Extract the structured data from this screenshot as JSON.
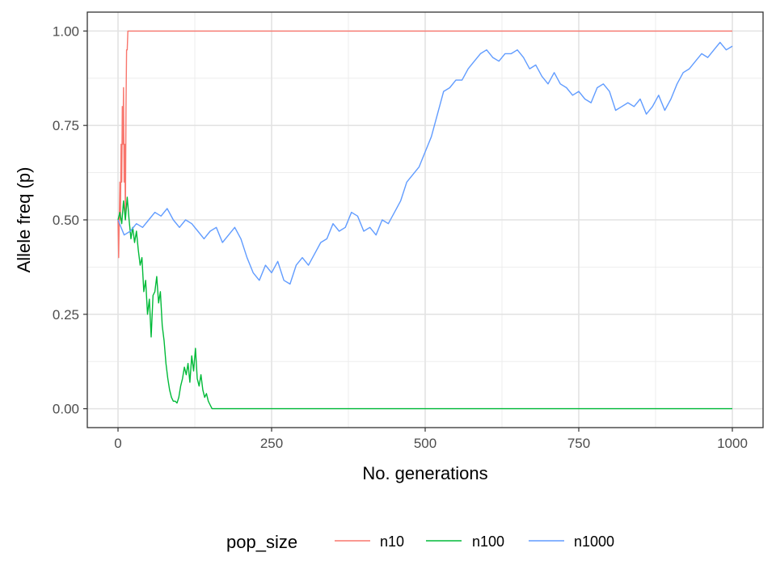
{
  "chart_data": {
    "type": "line",
    "title": "",
    "xlabel": "No. generations",
    "ylabel": "Allele freq (p)",
    "xlim": [
      -50,
      1050
    ],
    "ylim": [
      -0.05,
      1.05
    ],
    "x_ticks": [
      0,
      250,
      500,
      750,
      1000
    ],
    "x_tick_labels": [
      "0",
      "250",
      "500",
      "750",
      "1000"
    ],
    "y_ticks": [
      0,
      0.25,
      0.5,
      0.75,
      1.0
    ],
    "y_tick_labels": [
      "0.00",
      "0.25",
      "0.50",
      "0.75",
      "1.00"
    ],
    "grid": true,
    "legend": {
      "title": "pop_size",
      "position": "bottom"
    },
    "series": [
      {
        "name": "n10",
        "color": "#F8766D",
        "x": [
          0,
          1,
          2,
          3,
          4,
          5,
          6,
          7,
          8,
          9,
          10,
          11,
          12,
          13,
          14,
          15,
          16,
          17,
          1000
        ],
        "y": [
          0.5,
          0.4,
          0.5,
          0.6,
          0.5,
          0.7,
          0.6,
          0.8,
          0.7,
          0.85,
          0.6,
          0.7,
          0.5,
          0.8,
          0.95,
          0.95,
          1.0,
          1.0,
          1.0
        ]
      },
      {
        "name": "n100",
        "color": "#00BA38",
        "x": [
          0,
          3,
          6,
          9,
          12,
          15,
          18,
          21,
          24,
          27,
          30,
          33,
          36,
          39,
          42,
          45,
          48,
          51,
          54,
          57,
          60,
          63,
          66,
          69,
          72,
          75,
          78,
          81,
          84,
          87,
          90,
          93,
          96,
          99,
          102,
          105,
          108,
          111,
          114,
          117,
          120,
          123,
          126,
          129,
          132,
          135,
          138,
          141,
          144,
          147,
          150,
          153,
          155,
          1000
        ],
        "y": [
          0.5,
          0.52,
          0.49,
          0.55,
          0.5,
          0.56,
          0.5,
          0.45,
          0.48,
          0.44,
          0.47,
          0.42,
          0.38,
          0.4,
          0.31,
          0.34,
          0.25,
          0.29,
          0.19,
          0.3,
          0.31,
          0.35,
          0.28,
          0.31,
          0.22,
          0.18,
          0.12,
          0.08,
          0.05,
          0.03,
          0.02,
          0.02,
          0.015,
          0.03,
          0.06,
          0.08,
          0.11,
          0.09,
          0.12,
          0.07,
          0.14,
          0.1,
          0.16,
          0.08,
          0.06,
          0.09,
          0.05,
          0.03,
          0.04,
          0.02,
          0.01,
          0.0,
          0.0,
          0.0
        ]
      },
      {
        "name": "n1000",
        "color": "#619CFF",
        "x": [
          0,
          10,
          20,
          30,
          40,
          50,
          60,
          70,
          80,
          90,
          100,
          110,
          120,
          130,
          140,
          150,
          160,
          170,
          180,
          190,
          200,
          210,
          220,
          230,
          240,
          250,
          260,
          270,
          280,
          290,
          300,
          310,
          320,
          330,
          340,
          350,
          360,
          370,
          380,
          390,
          400,
          410,
          420,
          430,
          440,
          450,
          460,
          470,
          480,
          490,
          500,
          510,
          520,
          530,
          540,
          550,
          560,
          570,
          580,
          590,
          600,
          610,
          620,
          630,
          640,
          650,
          660,
          670,
          680,
          690,
          700,
          710,
          720,
          730,
          740,
          750,
          760,
          770,
          780,
          790,
          800,
          810,
          820,
          830,
          840,
          850,
          860,
          870,
          880,
          890,
          900,
          910,
          920,
          930,
          940,
          950,
          960,
          970,
          980,
          990,
          1000
        ],
        "y": [
          0.5,
          0.46,
          0.47,
          0.49,
          0.48,
          0.5,
          0.52,
          0.51,
          0.53,
          0.5,
          0.48,
          0.5,
          0.49,
          0.47,
          0.45,
          0.47,
          0.48,
          0.44,
          0.46,
          0.48,
          0.45,
          0.4,
          0.36,
          0.34,
          0.38,
          0.36,
          0.39,
          0.34,
          0.33,
          0.38,
          0.4,
          0.38,
          0.41,
          0.44,
          0.45,
          0.49,
          0.47,
          0.48,
          0.52,
          0.51,
          0.47,
          0.48,
          0.46,
          0.5,
          0.49,
          0.52,
          0.55,
          0.6,
          0.62,
          0.64,
          0.68,
          0.72,
          0.78,
          0.84,
          0.85,
          0.87,
          0.87,
          0.9,
          0.92,
          0.94,
          0.95,
          0.93,
          0.92,
          0.94,
          0.94,
          0.95,
          0.93,
          0.9,
          0.91,
          0.88,
          0.86,
          0.89,
          0.86,
          0.85,
          0.83,
          0.84,
          0.82,
          0.81,
          0.85,
          0.86,
          0.84,
          0.79,
          0.8,
          0.81,
          0.8,
          0.82,
          0.78,
          0.8,
          0.83,
          0.79,
          0.82,
          0.86,
          0.89,
          0.9,
          0.92,
          0.94,
          0.93,
          0.95,
          0.97,
          0.95,
          0.96
        ]
      }
    ]
  }
}
